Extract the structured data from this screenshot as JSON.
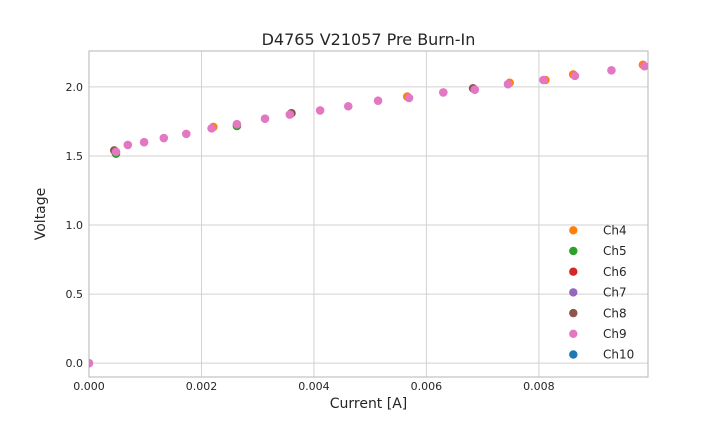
{
  "chart_data": {
    "type": "scatter",
    "title": "D4765 V21057 Pre Burn-In",
    "xlabel": "Current [A]",
    "ylabel": "Voltage",
    "xlim": [
      0,
      0.00994
    ],
    "ylim": [
      -0.1,
      2.26
    ],
    "xticks": [
      0.0,
      0.002,
      0.004,
      0.006,
      0.008
    ],
    "xtick_labels": [
      "0.000",
      "0.002",
      "0.004",
      "0.006",
      "0.008"
    ],
    "yticks": [
      0.0,
      0.5,
      1.0,
      1.5,
      2.0
    ],
    "ytick_labels": [
      "0.0",
      "0.5",
      "1.0",
      "1.5",
      "2.0"
    ],
    "grid": true,
    "grid_color": "#d2d2d2",
    "spine_color": "#c0c0c0",
    "text_color": "#262626",
    "legend": {
      "position": "lower right",
      "frame": false
    },
    "series": [
      {
        "name": "Ch4",
        "color": "#ff7f0e"
      },
      {
        "name": "Ch5",
        "color": "#2ca02c"
      },
      {
        "name": "Ch6",
        "color": "#d62728"
      },
      {
        "name": "Ch7",
        "color": "#9467bd"
      },
      {
        "name": "Ch8",
        "color": "#8c564b"
      },
      {
        "name": "Ch9",
        "color": "#e377c2"
      },
      {
        "name": "Ch10",
        "color": "#1f77b4"
      }
    ],
    "series_note": "All channels Ch4-Ch10 overlap almost exactly; Ch9 (pink) is drawn on top. Tiny fringes of underlying channel markers are visible at some points.",
    "top_series": "Ch9",
    "top_color": "#e377c2",
    "points": [
      {
        "i": 0.0,
        "v": 0.0
      },
      {
        "i": 0.00048,
        "v": 1.53,
        "under": [
          {
            "color": "#8c564b",
            "pos": "ul"
          },
          {
            "color": "#2ca02c",
            "pos": "b"
          }
        ]
      },
      {
        "i": 0.00069,
        "v": 1.58
      },
      {
        "i": 0.00098,
        "v": 1.6
      },
      {
        "i": 0.00133,
        "v": 1.63
      },
      {
        "i": 0.00173,
        "v": 1.66
      },
      {
        "i": 0.00218,
        "v": 1.7,
        "under": [
          {
            "color": "#ff7f0e",
            "pos": "ur"
          }
        ]
      },
      {
        "i": 0.00263,
        "v": 1.73,
        "under": [
          {
            "color": "#2ca02c",
            "pos": "b"
          }
        ]
      },
      {
        "i": 0.00313,
        "v": 1.77
      },
      {
        "i": 0.00357,
        "v": 1.8,
        "under": [
          {
            "color": "#8c564b",
            "pos": "ur"
          }
        ]
      },
      {
        "i": 0.00411,
        "v": 1.83
      },
      {
        "i": 0.00461,
        "v": 1.86
      },
      {
        "i": 0.00514,
        "v": 1.9
      },
      {
        "i": 0.00569,
        "v": 1.92,
        "under": [
          {
            "color": "#ff7f0e",
            "pos": "ul"
          }
        ]
      },
      {
        "i": 0.0063,
        "v": 1.96
      },
      {
        "i": 0.00686,
        "v": 1.98,
        "under": [
          {
            "color": "#8c564b",
            "pos": "ul"
          }
        ]
      },
      {
        "i": 0.00745,
        "v": 2.02,
        "under": [
          {
            "color": "#ff7f0e",
            "pos": "ur"
          }
        ]
      },
      {
        "i": 0.00808,
        "v": 2.05,
        "under": [
          {
            "color": "#ff7f0e",
            "pos": "r"
          }
        ]
      },
      {
        "i": 0.00864,
        "v": 2.08,
        "under": [
          {
            "color": "#ff7f0e",
            "pos": "ul"
          }
        ]
      },
      {
        "i": 0.00929,
        "v": 2.12
      },
      {
        "i": 0.00988,
        "v": 2.15,
        "under": [
          {
            "color": "#ff7f0e",
            "pos": "ul"
          }
        ]
      }
    ]
  }
}
